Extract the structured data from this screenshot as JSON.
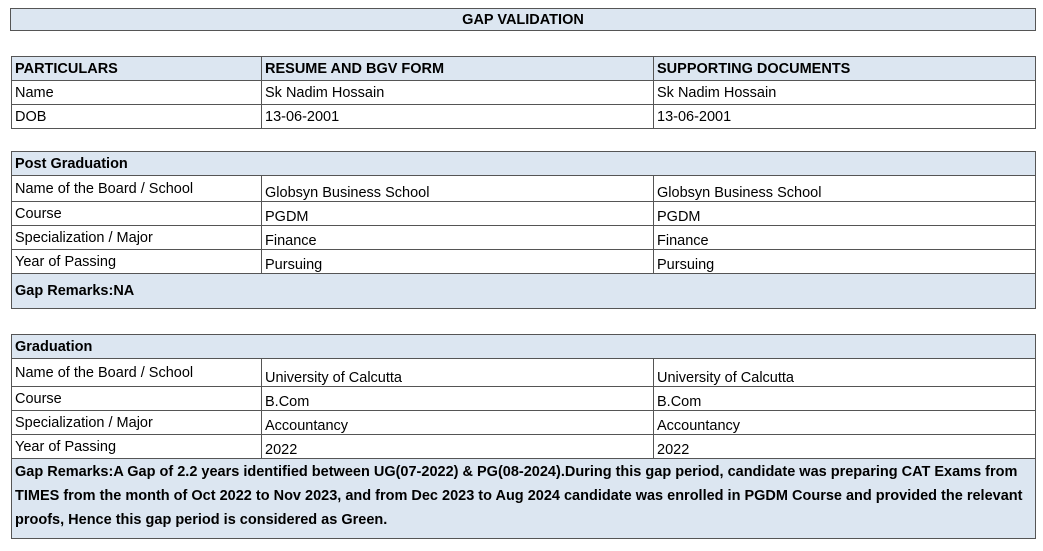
{
  "title": "GAP VALIDATION",
  "table": {
    "header": [
      "PARTICULARS",
      "RESUME AND BGV FORM",
      "SUPPORTING DOCUMENTS"
    ],
    "rows": [
      [
        "Name",
        "Sk Nadim Hossain",
        "Sk Nadim Hossain"
      ],
      [
        "DOB",
        "13-06-2001",
        "13-06-2001"
      ]
    ]
  },
  "sections": [
    {
      "heading": "Post Graduation",
      "rows": [
        [
          "Name of the Board / School",
          "Globsyn Business School",
          "Globsyn Business School"
        ],
        [
          "Course",
          "PGDM",
          "PGDM"
        ],
        [
          "Specialization / Major",
          "Finance",
          "Finance"
        ],
        [
          "Year of Passing",
          "Pursuing",
          "Pursuing"
        ]
      ],
      "remarks": "Gap Remarks:NA"
    },
    {
      "heading": "Graduation",
      "rows": [
        [
          "Name of the Board / School",
          "University of Calcutta",
          "University of Calcutta"
        ],
        [
          "Course",
          "B.Com",
          "B.Com"
        ],
        [
          "Specialization / Major",
          "Accountancy",
          "Accountancy"
        ],
        [
          "Year of Passing",
          "2022",
          "2022"
        ]
      ],
      "remarks": "Gap Remarks:A Gap of 2.2 years identified between UG(07-2022) & PG(08-2024).During this gap period, candidate was preparing CAT Exams from TIMES from the month of Oct 2022 to Nov 2023, and from Dec 2023 to Aug 2024 candidate was enrolled in PGDM Course and provided the relevant proofs, Hence this gap period is considered as Green."
    }
  ]
}
